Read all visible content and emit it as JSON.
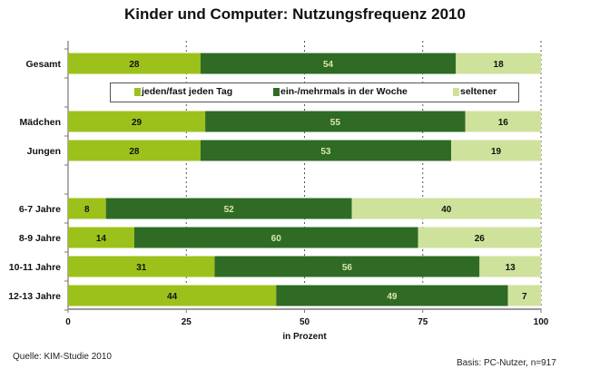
{
  "chart_data": {
    "type": "bar",
    "orientation": "horizontal",
    "stacked": true,
    "title": "Kinder und Computer: Nutzungsfrequenz 2010",
    "categories": [
      "Gesamt",
      "Mädchen",
      "Jungen",
      "6-7 Jahre",
      "8-9 Jahre",
      "10-11 Jahre",
      "12-13 Jahre"
    ],
    "series": [
      {
        "name": "jeden/fast jeden Tag",
        "color": "#9dc11b",
        "label_color": "#111111",
        "values": [
          28,
          29,
          28,
          8,
          14,
          31,
          44
        ]
      },
      {
        "name": "ein-/mehrmals in der Woche",
        "color": "#2f6b25",
        "label_color": "#d9e8a6",
        "values": [
          54,
          55,
          53,
          52,
          60,
          56,
          49
        ]
      },
      {
        "name": "seltener",
        "color": "#cfe29c",
        "label_color": "#111111",
        "values": [
          18,
          16,
          19,
          40,
          26,
          13,
          7
        ]
      }
    ],
    "xlabel": "in Prozent",
    "ylabel": "",
    "xlim": [
      0,
      100
    ],
    "xticks": [
      "0",
      "25",
      "50",
      "75",
      "100"
    ],
    "grid": "vertical dashed",
    "legend": "top, inside plot below first bar"
  },
  "footer": {
    "source": "Quelle: KIM-Studie 2010",
    "basis": "Basis: PC-Nutzer,  n=917"
  }
}
